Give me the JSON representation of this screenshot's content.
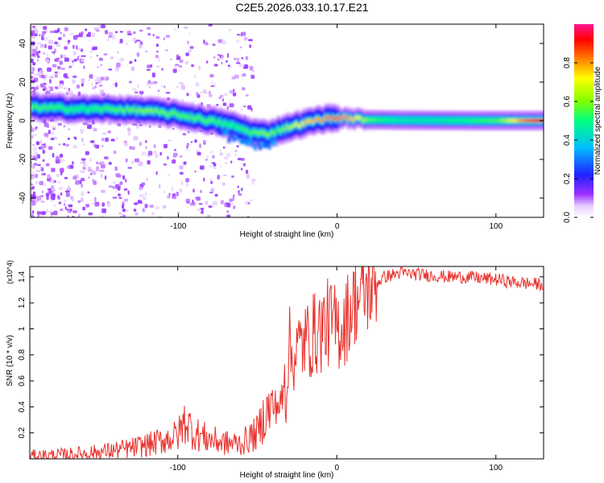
{
  "title": "C2E5.2026.033.10.17.E21",
  "colors": {
    "snr_line": "#e8322e",
    "frame": "#000000",
    "background": "#ffffff"
  },
  "chart_data": [
    {
      "type": "heatmap",
      "title": "C2E5.2026.033.10.17.E21",
      "xlabel": "Height of straight line (km)",
      "ylabel": "Frequency (Hz)",
      "xlim": [
        -193,
        130
      ],
      "ylim": [
        -50,
        50
      ],
      "x_ticks": [
        -100,
        0,
        100
      ],
      "y_ticks": [
        -40,
        -20,
        0,
        20,
        40
      ],
      "colorbar": {
        "label": "Normalized spectral amplitude",
        "range": [
          0,
          1
        ],
        "ticks": [
          0.0,
          0.2,
          0.4,
          0.6,
          0.8
        ],
        "tick_labels": [
          "0.0",
          "0.2",
          "0.4",
          "0.6",
          "0.8"
        ],
        "colormap": "rainbow (white-purple-blue-cyan-green-yellow-red-magenta)"
      },
      "ridge": {
        "x": [
          -193,
          -160,
          -140,
          -120,
          -100,
          -80,
          -65,
          -55,
          -45,
          -38,
          -30,
          -20,
          -10,
          0,
          10,
          20,
          40,
          60,
          80,
          100,
          115,
          130
        ],
        "frequency_hz": [
          7,
          6,
          6,
          5,
          3,
          0,
          -3,
          -6,
          -7,
          -5,
          -3,
          -1,
          1,
          1.5,
          1,
          0.5,
          0.3,
          0.2,
          0.1,
          0.1,
          0.1,
          0.1
        ],
        "amplitude": [
          0.55,
          0.5,
          0.55,
          0.6,
          0.55,
          0.55,
          0.5,
          0.55,
          0.6,
          0.55,
          0.65,
          0.75,
          0.8,
          0.85,
          0.75,
          0.55,
          0.45,
          0.45,
          0.5,
          0.55,
          0.8,
          0.95
        ]
      }
    },
    {
      "type": "line",
      "xlabel": "Height of straight line (km)",
      "ylabel": "SNR (10 * v/v)",
      "y_multiplier": "(x10^4)",
      "xlim": [
        -193,
        130
      ],
      "ylim": [
        0,
        1.48
      ],
      "x_ticks": [
        -100,
        0,
        100
      ],
      "y_ticks": [
        0.2,
        0.4,
        0.6,
        0.8,
        1.0,
        1.2,
        1.4
      ],
      "y_tick_labels": [
        "0.2",
        "0.4",
        "0.6",
        "0.8",
        "1",
        "1.2",
        "1.4"
      ],
      "series": [
        {
          "name": "SNR",
          "x": [
            -193,
            -170,
            -150,
            -130,
            -115,
            -100,
            -95,
            -90,
            -80,
            -70,
            -60,
            -50,
            -45,
            -40,
            -35,
            -32,
            -30,
            -28,
            -25,
            -20,
            -15,
            -10,
            -5,
            0,
            5,
            10,
            15,
            20,
            25,
            30,
            40,
            50,
            60,
            70,
            80,
            90,
            100,
            110,
            120,
            130
          ],
          "values": [
            0.02,
            0.03,
            0.05,
            0.08,
            0.12,
            0.18,
            0.3,
            0.2,
            0.15,
            0.12,
            0.12,
            0.2,
            0.35,
            0.4,
            0.42,
            0.55,
            0.9,
            0.75,
            0.85,
            0.9,
            0.95,
            1.0,
            1.05,
            1.0,
            1.05,
            1.2,
            1.25,
            1.3,
            1.35,
            1.4,
            1.43,
            1.42,
            1.41,
            1.4,
            1.4,
            1.39,
            1.38,
            1.36,
            1.35,
            1.34
          ]
        }
      ]
    }
  ]
}
